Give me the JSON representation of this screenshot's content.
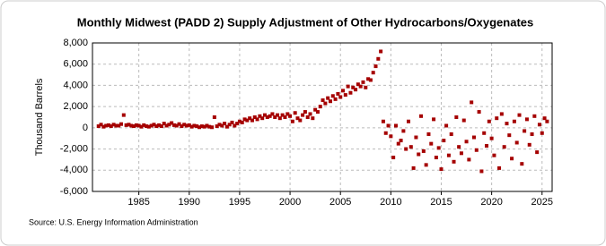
{
  "chart_data": {
    "type": "scatter",
    "title": "Monthly Midwest (PADD 2) Supply Adjustment of Other Hydrocarbons/Oxygenates",
    "y_label": "Thousand Barrels",
    "source": "Source: U.S. Energy Information Administration",
    "color": "#a50000",
    "grid": true,
    "xlim": [
      1980.4,
      2026
    ],
    "xticks": [
      1985,
      1990,
      1995,
      2000,
      2005,
      2010,
      2015,
      2020,
      2025
    ],
    "ylim": [
      -6000,
      8000
    ],
    "yticks": [
      {
        "value": -6000,
        "label": "-6,000"
      },
      {
        "value": -4000,
        "label": "-4,000"
      },
      {
        "value": -2000,
        "label": "-2,000"
      },
      0,
      {
        "value": 2000,
        "label": "2,000"
      },
      {
        "value": 4000,
        "label": "4,000"
      },
      {
        "value": 6000,
        "label": "6,000"
      },
      {
        "value": 8000,
        "label": "8,000"
      }
    ],
    "x": [
      1981,
      1981.25,
      1981.5,
      1981.75,
      1982,
      1982.25,
      1982.5,
      1982.75,
      1983,
      1983.25,
      1983.5,
      1983.75,
      1984,
      1984.25,
      1984.5,
      1984.75,
      1985,
      1985.25,
      1985.5,
      1985.75,
      1986,
      1986.25,
      1986.5,
      1986.75,
      1987,
      1987.25,
      1987.5,
      1987.75,
      1988,
      1988.25,
      1988.5,
      1988.75,
      1989,
      1989.25,
      1989.5,
      1989.75,
      1990,
      1990.25,
      1990.5,
      1990.75,
      1991,
      1991.25,
      1991.5,
      1991.75,
      1992,
      1992.25,
      1992.5,
      1992.75,
      1993,
      1993.25,
      1993.5,
      1993.75,
      1994,
      1994.25,
      1994.5,
      1994.75,
      1995,
      1995.25,
      1995.5,
      1995.75,
      1996,
      1996.25,
      1996.5,
      1996.75,
      1997,
      1997.25,
      1997.5,
      1997.75,
      1998,
      1998.25,
      1998.5,
      1998.75,
      1999,
      1999.25,
      1999.5,
      1999.75,
      2000,
      2000.25,
      2000.5,
      2000.75,
      2001,
      2001.25,
      2001.5,
      2001.75,
      2002,
      2002.25,
      2002.5,
      2002.75,
      2003,
      2003.25,
      2003.5,
      2003.75,
      2004,
      2004.25,
      2004.5,
      2004.75,
      2005,
      2005.25,
      2005.5,
      2005.75,
      2006,
      2006.25,
      2006.5,
      2006.75,
      2007,
      2007.25,
      2007.5,
      2007.75,
      2008,
      2008.25,
      2008.5,
      2008.75,
      2009,
      2009.25,
      2009.5,
      2009.75,
      2010,
      2010.25,
      2010.5,
      2010.75,
      2011,
      2011.25,
      2011.5,
      2011.75,
      2012,
      2012.25,
      2012.5,
      2012.75,
      2013,
      2013.25,
      2013.5,
      2013.75,
      2014,
      2014.25,
      2014.5,
      2014.75,
      2015,
      2015.25,
      2015.5,
      2015.75,
      2016,
      2016.25,
      2016.5,
      2016.75,
      2017,
      2017.25,
      2017.5,
      2017.75,
      2018,
      2018.25,
      2018.5,
      2018.75,
      2019,
      2019.25,
      2019.5,
      2019.75,
      2020,
      2020.25,
      2020.5,
      2020.75,
      2021,
      2021.25,
      2021.5,
      2021.75,
      2022,
      2022.25,
      2022.5,
      2022.75,
      2023,
      2023.25,
      2023.5,
      2023.75,
      2024,
      2024.25,
      2024.5,
      2024.75,
      2025,
      2025.25,
      2025.5
    ],
    "values": [
      150,
      300,
      100,
      200,
      250,
      150,
      300,
      200,
      200,
      350,
      1200,
      250,
      300,
      200,
      150,
      250,
      200,
      100,
      250,
      150,
      100,
      200,
      300,
      150,
      250,
      150,
      400,
      200,
      300,
      450,
      250,
      200,
      350,
      150,
      300,
      200,
      250,
      100,
      200,
      150,
      50,
      150,
      100,
      200,
      100,
      50,
      1000,
      150,
      300,
      200,
      400,
      100,
      300,
      500,
      200,
      400,
      600,
      500,
      800,
      700,
      900,
      700,
      1000,
      800,
      1100,
      900,
      1200,
      1000,
      1100,
      1300,
      1000,
      1200,
      900,
      1200,
      1000,
      1300,
      1100,
      600,
      1400,
      900,
      700,
      1200,
      1500,
      1000,
      1300,
      900,
      1700,
      1500,
      2000,
      2600,
      2300,
      2800,
      2500,
      3000,
      2700,
      3200,
      2900,
      3500,
      3100,
      3900,
      3300,
      3800,
      3600,
      4100,
      3900,
      4300,
      3800,
      4600,
      4500,
      5200,
      5800,
      6500,
      7200,
      600,
      -500,
      200,
      -800,
      -2800,
      200,
      -1500,
      -1200,
      -300,
      -2000,
      600,
      -1800,
      -3800,
      -900,
      -2500,
      1100,
      -2200,
      -3500,
      -600,
      -1500,
      800,
      -2800,
      -1900,
      -3900,
      -1200,
      200,
      -2600,
      -600,
      -3200,
      1000,
      -1800,
      -2400,
      700,
      -1300,
      -3000,
      2400,
      -900,
      -2100,
      1500,
      -4100,
      -500,
      -1700,
      600,
      -1000,
      -2600,
      900,
      -3800,
      1300,
      -1800,
      400,
      -700,
      -2900,
      600,
      -1400,
      1200,
      -3400,
      -300,
      800,
      -1600,
      -600,
      1100,
      -2300,
      300,
      -500,
      900,
      600
    ]
  }
}
